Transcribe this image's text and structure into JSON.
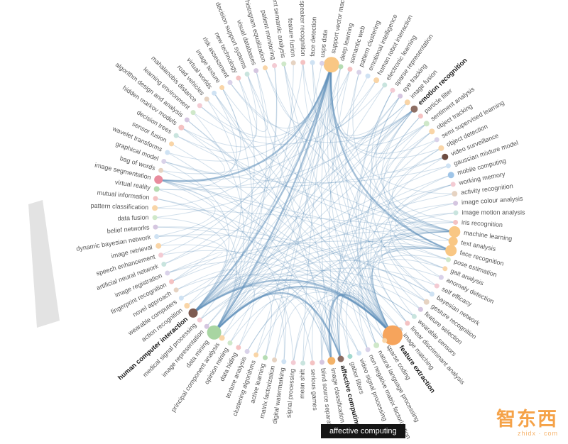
{
  "chart_data": {
    "type": "network",
    "layout": "radial-edge-bundled",
    "edge_color": "#5b8db8",
    "nodes": [
      {
        "label": "support vector machine",
        "color": "#f9c784",
        "r": 11
      },
      {
        "label": "deep learning",
        "color": "#b5dcb2",
        "r": 3.5
      },
      {
        "label": "semantic web",
        "color": "#f4c2c2",
        "r": 3.5
      },
      {
        "label": "pattern clustering",
        "color": "#d9d2e9",
        "r": 3.5
      },
      {
        "label": "emotional intelligence",
        "color": "#cfe2f3",
        "r": 3.5
      },
      {
        "label": "human robot interaction",
        "color": "#f9d5a7",
        "r": 4
      },
      {
        "label": "electronic learning",
        "color": "#c9e4de",
        "r": 3.5
      },
      {
        "label": "sparse representation",
        "color": "#f3cbd3",
        "r": 3.5
      },
      {
        "label": "eye tracking",
        "color": "#d5c6e0",
        "r": 3.5
      },
      {
        "label": "image fusion",
        "color": "#f9d5a7",
        "r": 4
      },
      {
        "label": "emotion recognition",
        "color": "#8d6e63",
        "r": 5,
        "bold": true
      },
      {
        "label": "particle filter",
        "color": "#f4c2c2",
        "r": 3.5
      },
      {
        "label": "sentiment analysis",
        "color": "#cfe8c9",
        "r": 4
      },
      {
        "label": "object tracking",
        "color": "#f9d5a7",
        "r": 4
      },
      {
        "label": "semi supervised learning",
        "color": "#d9d2e9",
        "r": 3.5
      },
      {
        "label": "object detection",
        "color": "#f9d5a7",
        "r": 4
      },
      {
        "label": "video surveillance",
        "color": "#6d4c41",
        "r": 4.5
      },
      {
        "label": "gaussian mixture model",
        "color": "#cfe2f3",
        "r": 3.5
      },
      {
        "label": "mobile computing",
        "color": "#9fc5e8",
        "r": 4.5
      },
      {
        "label": "working memory",
        "color": "#f3cbd3",
        "r": 3.5
      },
      {
        "label": "activity recognition",
        "color": "#e6d3c2",
        "r": 4
      },
      {
        "label": "image colour analysis",
        "color": "#d5c6e0",
        "r": 3.5
      },
      {
        "label": "image motion analysis",
        "color": "#c9e4de",
        "r": 3.5
      },
      {
        "label": "iris recognition",
        "color": "#f4c2c2",
        "r": 3.5
      },
      {
        "label": "machine learning",
        "color": "#f9c784",
        "r": 8
      },
      {
        "label": "text analysis",
        "color": "#f9c784",
        "r": 6.5
      },
      {
        "label": "face recognition",
        "color": "#f9c784",
        "r": 8
      },
      {
        "label": "pose estimation",
        "color": "#cfe8c9",
        "r": 3.5
      },
      {
        "label": "gait analysis",
        "color": "#f9d5a7",
        "r": 3.5
      },
      {
        "label": "anomaly detection",
        "color": "#d9d2e9",
        "r": 3.5
      },
      {
        "label": "self efficacy",
        "color": "#f3cbd3",
        "r": 3.5
      },
      {
        "label": "bayesian network",
        "color": "#cfe2f3",
        "r": 3.5
      },
      {
        "label": "gesture recognition",
        "color": "#e6d3c2",
        "r": 4
      },
      {
        "label": "feature selection",
        "color": "#d5c6e0",
        "r": 3.5
      },
      {
        "label": "wearable sensors",
        "color": "#c9e4de",
        "r": 3.5
      },
      {
        "label": "linear discriminant analysis",
        "color": "#f4c2c2",
        "r": 3.5
      },
      {
        "label": "image matching",
        "color": "#cccccc",
        "r": 3.5
      },
      {
        "label": "feature extraction",
        "color": "#f6a45c",
        "r": 14,
        "bold": true
      },
      {
        "label": "sparse coding",
        "color": "#f9d5a7",
        "r": 3.5
      },
      {
        "label": "natural language processing",
        "color": "#cfe8c9",
        "r": 4
      },
      {
        "label": "non negative matrix factorization",
        "color": "#d9d2e9",
        "r": 3.5
      },
      {
        "label": "video signal processing",
        "color": "#cfe2f3",
        "r": 3.5
      },
      {
        "label": "gabor filters",
        "color": "#a2d9ce",
        "r": 3.5
      },
      {
        "label": "affective computing",
        "color": "#8d6e63",
        "r": 4.5,
        "bold": true
      },
      {
        "label": "image classification",
        "color": "#f3b268",
        "r": 5.5
      },
      {
        "label": "blind source separation",
        "color": "#d5c6e0",
        "r": 3.5
      },
      {
        "label": "serious games",
        "color": "#f4c2c2",
        "r": 3.5
      },
      {
        "label": "mean shift",
        "color": "#c9e4de",
        "r": 3.5
      },
      {
        "label": "signal processing",
        "color": "#f3cbd3",
        "r": 3.5
      },
      {
        "label": "digital watermarking",
        "color": "#cfe2f3",
        "r": 3.5
      },
      {
        "label": "matrix factorization",
        "color": "#e6d3c2",
        "r": 3.5
      },
      {
        "label": "active learning",
        "color": "#b5dcb2",
        "r": 3.5
      },
      {
        "label": "clustering algorithms",
        "color": "#f9d5a7",
        "r": 3.5
      },
      {
        "label": "texture analysis",
        "color": "#d9d2e9",
        "r": 3.5
      },
      {
        "label": "data hiding",
        "color": "#f4c2c2",
        "r": 3.5
      },
      {
        "label": "opinion mining",
        "color": "#cfe8c9",
        "r": 3.5
      },
      {
        "label": "principal component analysis",
        "color": "#f9d5a7",
        "r": 4
      },
      {
        "label": "data mining",
        "color": "#a8d5a2",
        "r": 10
      },
      {
        "label": "image representation",
        "color": "#d5c6e0",
        "r": 3.5
      },
      {
        "label": "medical signal processing",
        "color": "#f3cbd3",
        "r": 3.5
      },
      {
        "label": "human computer interaction",
        "color": "#7d5a50",
        "r": 6.5,
        "bold": true
      },
      {
        "label": "action recognition",
        "color": "#f9d5a7",
        "r": 4
      },
      {
        "label": "wearable computers",
        "color": "#cfe2f3",
        "r": 3.5
      },
      {
        "label": "novel approach",
        "color": "#e6d3c2",
        "r": 3.5
      },
      {
        "label": "fingerprint recognition",
        "color": "#f4c2c2",
        "r": 3.5
      },
      {
        "label": "image registration",
        "color": "#d9d2e9",
        "r": 3.5
      },
      {
        "label": "artificial neural network",
        "color": "#c9e4de",
        "r": 3.5
      },
      {
        "label": "speech enhancement",
        "color": "#f3cbd3",
        "r": 3.5
      },
      {
        "label": "image retrieval",
        "color": "#f9d5a7",
        "r": 4
      },
      {
        "label": "dynamic bayesian network",
        "color": "#cfe2f3",
        "r": 3.5
      },
      {
        "label": "belief networks",
        "color": "#d5c6e0",
        "r": 3.5
      },
      {
        "label": "data fusion",
        "color": "#cfe8c9",
        "r": 3.5
      },
      {
        "label": "pattern classification",
        "color": "#f9d5a7",
        "r": 4
      },
      {
        "label": "mutual information",
        "color": "#f4c2c2",
        "r": 3.5
      },
      {
        "label": "virtual reality",
        "color": "#b5dcb2",
        "r": 4
      },
      {
        "label": "image segmentation",
        "color": "#e98b9d",
        "r": 6
      },
      {
        "label": "bag of words",
        "color": "#e6d3c2",
        "r": 3.5
      },
      {
        "label": "graphical model",
        "color": "#d9d2e9",
        "r": 3.5
      },
      {
        "label": "wavelet transforms",
        "color": "#cfe2f3",
        "r": 3.5
      },
      {
        "label": "sensor fusion",
        "color": "#f9d5a7",
        "r": 3.5
      },
      {
        "label": "decision trees",
        "color": "#c9e4de",
        "r": 3.5
      },
      {
        "label": "hidden markov models",
        "color": "#f4c2c2",
        "r": 4
      },
      {
        "label": "algorithm design and analysis",
        "color": "#d5c6e0",
        "r": 3.5
      },
      {
        "label": "learning environment",
        "color": "#cfe8c9",
        "r": 3.5
      },
      {
        "label": "mahalanobis distance",
        "color": "#f3cbd3",
        "r": 3.5
      },
      {
        "label": "road vehicles",
        "color": "#e6d3c2",
        "r": 3.5
      },
      {
        "label": "virtual worlds",
        "color": "#cfe2f3",
        "r": 3.5
      },
      {
        "label": "image texture",
        "color": "#f9d5a7",
        "r": 3.5
      },
      {
        "label": "risk assessment",
        "color": "#d9d2e9",
        "r": 3.5
      },
      {
        "label": "new technology",
        "color": "#f4c2c2",
        "r": 3.5
      },
      {
        "label": "decision support systems",
        "color": "#c9e4de",
        "r": 3.5
      },
      {
        "label": "visual databases",
        "color": "#d5c6e0",
        "r": 3.5
      },
      {
        "label": "histogram equalization",
        "color": "#f9d5a7",
        "r": 3.5
      },
      {
        "label": "patient monitoring",
        "color": "#f3cbd3",
        "r": 3.5
      },
      {
        "label": "latent semantic analysis",
        "color": "#cfe8c9",
        "r": 3.5
      },
      {
        "label": "feature fusion",
        "color": "#e6d3c2",
        "r": 3.5
      },
      {
        "label": "speaker recognition",
        "color": "#f4c2c2",
        "r": 3.5
      },
      {
        "label": "face detection",
        "color": "#cfe2f3",
        "r": 3.5
      },
      {
        "label": "usps data",
        "color": "#d9d2e9",
        "r": 3.5
      }
    ],
    "edges": [
      [
        0,
        5
      ],
      [
        0,
        9
      ],
      [
        0,
        12
      ],
      [
        0,
        14
      ],
      [
        0,
        15
      ],
      [
        0,
        20
      ],
      [
        0,
        24
      ],
      [
        0,
        31
      ],
      [
        0,
        33
      ],
      [
        0,
        35
      ],
      [
        0,
        37
      ],
      [
        0,
        40
      ],
      [
        0,
        44
      ],
      [
        0,
        47
      ],
      [
        0,
        50
      ],
      [
        0,
        52
      ],
      [
        0,
        56
      ],
      [
        0,
        61
      ],
      [
        0,
        64
      ],
      [
        0,
        66
      ],
      [
        0,
        68
      ],
      [
        0,
        72
      ],
      [
        0,
        78
      ],
      [
        0,
        81
      ],
      [
        0,
        84
      ],
      [
        0,
        88
      ],
      [
        0,
        92
      ],
      [
        0,
        96
      ],
      [
        37,
        3
      ],
      [
        37,
        7
      ],
      [
        37,
        11
      ],
      [
        37,
        13
      ],
      [
        37,
        16
      ],
      [
        37,
        21
      ],
      [
        37,
        23
      ],
      [
        37,
        26
      ],
      [
        37,
        28
      ],
      [
        37,
        32
      ],
      [
        37,
        36
      ],
      [
        37,
        39
      ],
      [
        37,
        42
      ],
      [
        37,
        45
      ],
      [
        37,
        48
      ],
      [
        37,
        53
      ],
      [
        37,
        59
      ],
      [
        37,
        62
      ],
      [
        37,
        65
      ],
      [
        37,
        67
      ],
      [
        37,
        70
      ],
      [
        37,
        73
      ],
      [
        37,
        76
      ],
      [
        37,
        79
      ],
      [
        37,
        82
      ],
      [
        37,
        86
      ],
      [
        37,
        90
      ],
      [
        37,
        94
      ],
      [
        37,
        97
      ],
      [
        57,
        1
      ],
      [
        57,
        2
      ],
      [
        57,
        6
      ],
      [
        57,
        8
      ],
      [
        57,
        12
      ],
      [
        57,
        18
      ],
      [
        57,
        24
      ],
      [
        57,
        30
      ],
      [
        57,
        34
      ],
      [
        57,
        38
      ],
      [
        57,
        46
      ],
      [
        57,
        51
      ],
      [
        57,
        55
      ],
      [
        57,
        60
      ],
      [
        57,
        63
      ],
      [
        57,
        69
      ],
      [
        57,
        74
      ],
      [
        57,
        83
      ],
      [
        57,
        87
      ],
      [
        57,
        91
      ],
      [
        57,
        95
      ],
      [
        60,
        4
      ],
      [
        60,
        8
      ],
      [
        60,
        10
      ],
      [
        60,
        17
      ],
      [
        60,
        19
      ],
      [
        60,
        22
      ],
      [
        60,
        25
      ],
      [
        60,
        29
      ],
      [
        60,
        32
      ],
      [
        60,
        34
      ],
      [
        60,
        41
      ],
      [
        60,
        44
      ],
      [
        60,
        49
      ],
      [
        60,
        54
      ],
      [
        60,
        58
      ],
      [
        60,
        62
      ],
      [
        60,
        71
      ],
      [
        60,
        77
      ],
      [
        60,
        85
      ],
      [
        60,
        89
      ],
      [
        60,
        93
      ],
      [
        60,
        98
      ],
      [
        24,
        3
      ],
      [
        24,
        13
      ],
      [
        24,
        15
      ],
      [
        24,
        27
      ],
      [
        24,
        31
      ],
      [
        24,
        40
      ],
      [
        24,
        47
      ],
      [
        24,
        52
      ],
      [
        24,
        56
      ],
      [
        24,
        64
      ],
      [
        24,
        72
      ],
      [
        24,
        80
      ],
      [
        24,
        84
      ],
      [
        24,
        92
      ],
      [
        26,
        7
      ],
      [
        26,
        11
      ],
      [
        26,
        21
      ],
      [
        26,
        23
      ],
      [
        26,
        35
      ],
      [
        26,
        42
      ],
      [
        26,
        45
      ],
      [
        26,
        53
      ],
      [
        26,
        59
      ],
      [
        26,
        65
      ],
      [
        26,
        75
      ],
      [
        26,
        81
      ],
      [
        26,
        97
      ],
      [
        10,
        1
      ],
      [
        10,
        12
      ],
      [
        10,
        25
      ],
      [
        10,
        39
      ],
      [
        10,
        43
      ],
      [
        10,
        58
      ],
      [
        10,
        66
      ],
      [
        10,
        74
      ],
      [
        10,
        88
      ],
      [
        10,
        96
      ],
      [
        43,
        2
      ],
      [
        43,
        9
      ],
      [
        43,
        19
      ],
      [
        43,
        27
      ],
      [
        43,
        33
      ],
      [
        43,
        46
      ],
      [
        43,
        55
      ],
      [
        43,
        63
      ],
      [
        43,
        73
      ],
      [
        43,
        86
      ],
      [
        43,
        94
      ],
      [
        44,
        14
      ],
      [
        44,
        22
      ],
      [
        44,
        36
      ],
      [
        44,
        50
      ],
      [
        44,
        68
      ],
      [
        44,
        78
      ],
      [
        44,
        90
      ],
      [
        75,
        5
      ],
      [
        75,
        16
      ],
      [
        75,
        28
      ],
      [
        75,
        38
      ],
      [
        75,
        48
      ],
      [
        75,
        69
      ],
      [
        75,
        87
      ],
      [
        18,
        34
      ],
      [
        16,
        13
      ],
      [
        39,
        12
      ],
      [
        81,
        77
      ],
      [
        31,
        69
      ],
      [
        7,
        38
      ],
      [
        20,
        61
      ],
      [
        32,
        8
      ],
      [
        25,
        94
      ],
      [
        74,
        86
      ],
      [
        29,
        15
      ],
      [
        49,
        54
      ],
      [
        51,
        1
      ],
      [
        71,
        9
      ],
      [
        35,
        82
      ],
      [
        23,
        8
      ],
      [
        67,
        96
      ],
      [
        59,
        93
      ],
      [
        41,
        48
      ],
      [
        65,
        64
      ],
      [
        90,
        80
      ],
      [
        17,
        77
      ],
      [
        6,
        83
      ],
      [
        30,
        19
      ],
      [
        85,
        89
      ],
      [
        91,
        87
      ],
      [
        45,
        40
      ],
      [
        70,
        31
      ],
      [
        27,
        28
      ],
      [
        76,
        2
      ]
    ],
    "thick_edges": [
      [
        0,
        57
      ],
      [
        0,
        60
      ],
      [
        0,
        75
      ],
      [
        0,
        26
      ],
      [
        37,
        57
      ],
      [
        37,
        60
      ],
      [
        37,
        44
      ],
      [
        57,
        43
      ]
    ]
  },
  "tooltip": {
    "label": "affective computing"
  },
  "watermark": {
    "text": "智东西",
    "subtext": "zhidx · com"
  }
}
